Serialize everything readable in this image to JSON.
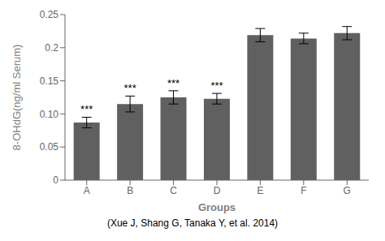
{
  "chart_data": {
    "type": "bar",
    "categories": [
      "A",
      "B",
      "C",
      "D",
      "E",
      "F",
      "G"
    ],
    "values": [
      0.087,
      0.115,
      0.125,
      0.123,
      0.219,
      0.214,
      0.222
    ],
    "errors": [
      0.008,
      0.012,
      0.01,
      0.008,
      0.01,
      0.008,
      0.01
    ],
    "color": "#606060",
    "xlabel": "Groups",
    "ylabel": "8-OHdG(ng/ml Serum)",
    "ylim": [
      0,
      0.25
    ],
    "yticks": [
      0,
      0.05,
      {
        "value": 0.1,
        "label": "0.10"
      },
      0.15,
      0.2,
      0.25
    ],
    "annotations": [
      {
        "x": "A",
        "text": "***"
      },
      {
        "x": "B",
        "text": "***"
      },
      {
        "x": "C",
        "text": "***"
      },
      {
        "x": "D",
        "text": "***"
      }
    ],
    "caption": "(Xue J, Shang G, Tanaka Y, et al. 2014)",
    "grid": false
  }
}
